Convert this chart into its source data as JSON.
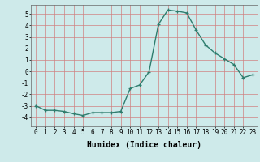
{
  "x": [
    0,
    1,
    2,
    3,
    4,
    5,
    6,
    7,
    8,
    9,
    10,
    11,
    12,
    13,
    14,
    15,
    16,
    17,
    18,
    19,
    20,
    21,
    22,
    23
  ],
  "y": [
    -3.0,
    -3.4,
    -3.4,
    -3.5,
    -3.7,
    -3.85,
    -3.6,
    -3.6,
    -3.6,
    -3.5,
    -1.5,
    -1.2,
    -0.05,
    4.1,
    5.35,
    5.25,
    5.1,
    3.6,
    2.3,
    1.6,
    1.1,
    0.6,
    -0.55,
    -0.3
  ],
  "line_color": "#2e7d6e",
  "marker": "+",
  "markersize": 3,
  "linewidth": 1.0,
  "background_color": "#ceeaea",
  "grid_color_major": "#d08080",
  "grid_color_minor": "#d08080",
  "xlabel": "Humidex (Indice chaleur)",
  "xlabel_fontsize": 7,
  "xlim": [
    -0.5,
    23.5
  ],
  "ylim": [
    -4.8,
    5.8
  ],
  "yticks": [
    -4,
    -3,
    -2,
    -1,
    0,
    1,
    2,
    3,
    4,
    5
  ],
  "xticks": [
    0,
    1,
    2,
    3,
    4,
    5,
    6,
    7,
    8,
    9,
    10,
    11,
    12,
    13,
    14,
    15,
    16,
    17,
    18,
    19,
    20,
    21,
    22,
    23
  ],
  "tick_fontsize": 5.5,
  "markeredgewidth": 0.9
}
